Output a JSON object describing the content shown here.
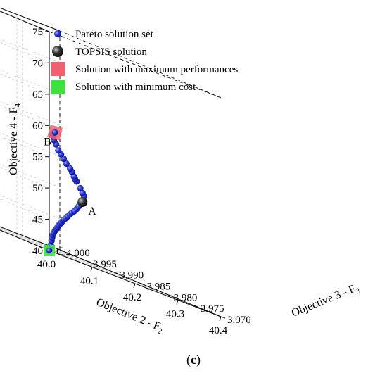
{
  "chart_data": {
    "type": "scatter",
    "title": "",
    "caption": "c",
    "axes": {
      "x": {
        "label_main": "Objective 2 - F",
        "label_sub": "2",
        "range": [
          40.0,
          40.4
        ],
        "ticks": [
          "40.0",
          "40.1",
          "40.2",
          "40.3",
          "40.4"
        ]
      },
      "y": {
        "label_main": "Objective 3 - F",
        "label_sub": "3",
        "range": [
          3.97,
          4.0
        ],
        "ticks": [
          "3.970",
          "3.975",
          "3.980",
          "3.985",
          "3.990",
          "3.995",
          "4.000"
        ]
      },
      "z": {
        "label_main": "Objective 4 - F",
        "label_sub": "4",
        "range": [
          40,
          75
        ],
        "ticks": [
          "40",
          "45",
          "50",
          "55",
          "60",
          "65",
          "70",
          "75"
        ]
      }
    },
    "grid": true,
    "legend": {
      "position": "top-left",
      "entries": [
        {
          "label": "Pareto solution set",
          "color": "#1f2fd6",
          "marker": "sphere"
        },
        {
          "label": "TOPSIS solution",
          "color": "#333333",
          "marker": "sphere"
        },
        {
          "label": "Solution with maximum performances",
          "color": "#f06070",
          "marker": "square"
        },
        {
          "label": "Solution with minimum cost",
          "color": "#40e040",
          "marker": "square"
        }
      ]
    },
    "series": [
      {
        "name": "Pareto solution set",
        "color": "#1f2fd6",
        "points": [
          [
            40.003,
            3.9701,
            40.3
          ],
          [
            40.006,
            3.9702,
            41.0
          ],
          [
            40.009,
            3.9703,
            41.7
          ],
          [
            40.013,
            3.9705,
            42.2
          ],
          [
            40.017,
            3.9707,
            42.7
          ],
          [
            40.022,
            3.9709,
            43.1
          ],
          [
            40.027,
            3.9711,
            43.5
          ],
          [
            40.033,
            3.9713,
            43.9
          ],
          [
            40.039,
            3.9716,
            44.2
          ],
          [
            40.046,
            3.9719,
            44.6
          ],
          [
            40.053,
            3.9722,
            44.9
          ],
          [
            40.061,
            3.9726,
            45.2
          ],
          [
            40.069,
            3.973,
            45.5
          ],
          [
            40.077,
            3.9734,
            45.8
          ],
          [
            40.086,
            3.9738,
            46.1
          ],
          [
            40.097,
            3.9743,
            46.5
          ],
          [
            40.108,
            3.9748,
            46.9
          ],
          [
            40.119,
            3.9753,
            47.3
          ],
          [
            40.131,
            3.9758,
            47.7
          ],
          [
            40.144,
            3.9764,
            48.2
          ],
          [
            40.156,
            3.977,
            48.7
          ],
          [
            40.2,
            3.9795,
            50.6
          ],
          [
            40.205,
            3.9802,
            51.0
          ],
          [
            40.21,
            3.981,
            51.6
          ],
          [
            40.22,
            3.9825,
            52.4
          ],
          [
            40.225,
            3.9832,
            52.7
          ],
          [
            40.23,
            3.9838,
            53.0
          ],
          [
            40.238,
            3.9848,
            53.6
          ],
          [
            40.245,
            3.9857,
            54.0
          ],
          [
            40.255,
            3.9872,
            54.5
          ],
          [
            40.265,
            3.9885,
            55.1
          ],
          [
            40.275,
            3.9898,
            55.6
          ],
          [
            40.29,
            3.9915,
            56.0
          ],
          [
            40.31,
            3.9935,
            56.8
          ],
          [
            40.33,
            3.9955,
            57.3
          ],
          [
            40.345,
            3.9968,
            57.8
          ],
          [
            40.352,
            3.9975,
            58.1
          ],
          [
            40.36,
            3.998,
            58.3
          ]
        ]
      },
      {
        "name": "TOPSIS solution",
        "color": "#333333",
        "points": [
          [
            40.18,
            3.9782,
            49.6
          ]
        ]
      },
      {
        "name": "Solution with maximum performances",
        "color": "#f06070",
        "points": [
          [
            40.37,
            3.9985,
            58.5
          ]
        ]
      },
      {
        "name": "Solution with minimum cost",
        "color": "#40e040",
        "points": [
          [
            40.0,
            3.97,
            40.0
          ]
        ]
      }
    ],
    "annotations": [
      {
        "text": "A",
        "at": [
          40.18,
          3.9782,
          49.6
        ]
      },
      {
        "text": "B",
        "at": [
          40.37,
          3.9985,
          58.5
        ]
      },
      {
        "text": "C",
        "at": [
          40.0,
          3.97,
          40.0
        ]
      }
    ]
  }
}
